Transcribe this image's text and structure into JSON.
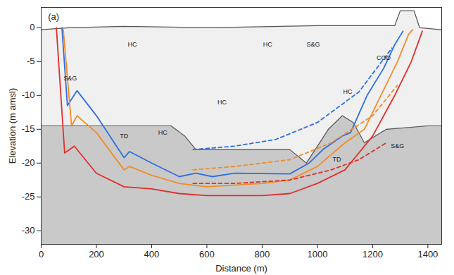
{
  "chart_data": {
    "type": "line",
    "x_label": "Distance (m)",
    "y_label": "Elevation (m amsl)",
    "xlim": [
      0,
      1450
    ],
    "ylim": [
      -32,
      3
    ],
    "xticks": [
      0,
      200,
      400,
      600,
      800,
      1000,
      1200,
      1400
    ],
    "yticks": [
      -30,
      -25,
      -20,
      -15,
      -10,
      -5,
      0
    ],
    "grid": false,
    "series": [
      {
        "type": "area",
        "color": "#f0f0f0",
        "x": [
          0,
          100,
          300,
          600,
          1000,
          1280,
          1300,
          1350,
          1370,
          1450
        ],
        "values": [
          -0.3,
          0,
          0.2,
          0,
          0.3,
          0.3,
          2.5,
          2.5,
          0,
          -0.3
        ]
      },
      {
        "type": "area",
        "color": "#c9c9c9",
        "x": [
          0,
          470,
          520,
          560,
          700,
          900,
          960,
          1040,
          1090,
          1130,
          1170,
          1250,
          1400,
          1450
        ],
        "values": [
          -14.5,
          -14.5,
          -16,
          -18,
          -18,
          -18,
          -20,
          -15,
          -13,
          -14,
          -17,
          -15,
          -14.5,
          -14.5
        ]
      },
      {
        "type": "line",
        "color": "#2f6fe0",
        "line_style": "solid",
        "x": [
          75,
          95,
          130,
          200,
          300,
          320,
          400,
          500,
          560,
          620,
          700,
          900,
          970,
          1020,
          1090,
          1120,
          1180,
          1240,
          1280,
          1310
        ],
        "values": [
          0,
          -11.5,
          -9.3,
          -13,
          -19.2,
          -18.3,
          -20,
          -22,
          -21.5,
          -22,
          -21.5,
          -21.6,
          -20,
          -18,
          -16,
          -15.5,
          -10,
          -6,
          -2.5,
          -0.5
        ]
      },
      {
        "type": "line",
        "color": "#f28c28",
        "line_style": "solid",
        "x": [
          80,
          110,
          130,
          200,
          300,
          320,
          400,
          500,
          600,
          800,
          900,
          1000,
          1100,
          1170,
          1230,
          1290,
          1330,
          1345
        ],
        "values": [
          -0.3,
          -14.5,
          -13,
          -15.5,
          -21,
          -20.5,
          -21.8,
          -23,
          -23.5,
          -23,
          -22.5,
          -20.5,
          -17,
          -15,
          -10,
          -5,
          -1,
          -0.3
        ]
      },
      {
        "type": "line",
        "color": "#e0302a",
        "line_style": "solid",
        "x": [
          55,
          85,
          120,
          200,
          300,
          400,
          500,
          600,
          800,
          900,
          1000,
          1100,
          1200,
          1280,
          1340,
          1380
        ],
        "values": [
          0,
          -18.5,
          -17.5,
          -21.5,
          -23.5,
          -23.8,
          -24.5,
          -24.8,
          -24.8,
          -24.5,
          -23,
          -21,
          -16,
          -10,
          -5,
          -0.5
        ]
      },
      {
        "type": "line",
        "color": "#2f6fe0",
        "line_style": "dashed",
        "x": [
          550,
          700,
          850,
          1000,
          1150,
          1270
        ],
        "values": [
          -18,
          -17.5,
          -16.5,
          -14,
          -9.5,
          -3
        ]
      },
      {
        "type": "line",
        "color": "#f28c28",
        "line_style": "dashed",
        "x": [
          550,
          700,
          900,
          1050,
          1200,
          1290
        ],
        "values": [
          -21,
          -20.5,
          -19.5,
          -17,
          -13,
          -8.5
        ]
      },
      {
        "type": "line",
        "color": "#e0302a",
        "line_style": "dashed",
        "x": [
          550,
          700,
          900,
          1050,
          1150,
          1250
        ],
        "values": [
          -23,
          -23,
          -22.5,
          -21,
          -19.5,
          -17
        ]
      }
    ],
    "annotations": [
      {
        "text": "(a)",
        "x": 45,
        "y": 1.6
      },
      {
        "text": "HC",
        "x": 330,
        "y": -2.5
      },
      {
        "text": "HC",
        "x": 820,
        "y": -2.5
      },
      {
        "text": "S&G",
        "x": 985,
        "y": -2.5
      },
      {
        "text": "S&G",
        "x": 105,
        "y": -7.5
      },
      {
        "text": "HC",
        "x": 655,
        "y": -11
      },
      {
        "text": "HC",
        "x": 440,
        "y": -15.5
      },
      {
        "text": "HC",
        "x": 1110,
        "y": -9.5
      },
      {
        "text": "COD",
        "x": 1240,
        "y": -4.5
      },
      {
        "text": "S&G",
        "x": 1290,
        "y": -17.5
      },
      {
        "text": "TD",
        "x": 300,
        "y": -16
      },
      {
        "text": "TD",
        "x": 1070,
        "y": -19.5
      }
    ]
  }
}
